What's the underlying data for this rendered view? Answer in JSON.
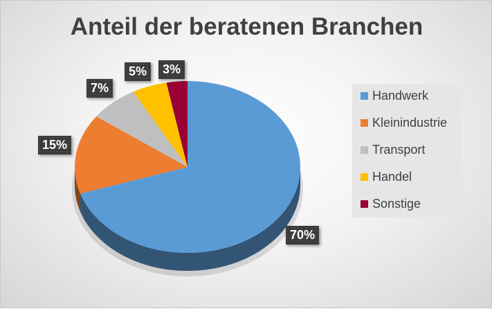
{
  "chart_data": {
    "type": "pie",
    "title": "Anteil der beratenen Branchen",
    "categories": [
      "Handwerk",
      "Kleinindustrie",
      "Transport",
      "Handel",
      "Sonstige"
    ],
    "values": [
      70,
      15,
      7,
      5,
      3
    ],
    "labels": [
      "70%",
      "15%",
      "7%",
      "5%",
      "3%"
    ],
    "colors": [
      "#5b9bd5",
      "#ed7d31",
      "#bfbfbf",
      "#ffc000",
      "#990033"
    ],
    "legend": "right",
    "style": "3d"
  }
}
